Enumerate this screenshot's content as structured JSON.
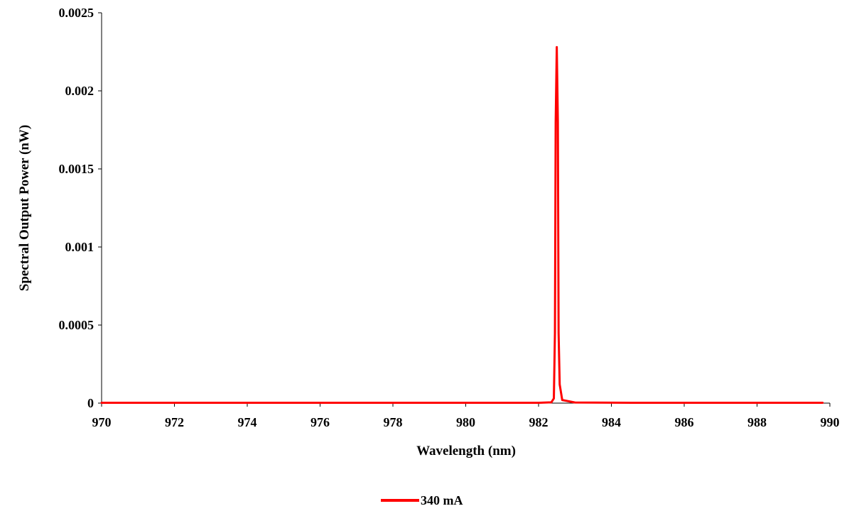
{
  "chart_data": {
    "type": "line",
    "title": "",
    "xlabel": "Wavelength (nm)",
    "ylabel": "Spectral Output Power (nW)",
    "xlim": [
      970,
      990
    ],
    "ylim": [
      0,
      0.0025
    ],
    "x_ticks": [
      "970",
      "972",
      "974",
      "976",
      "978",
      "980",
      "982",
      "984",
      "986",
      "988",
      "990"
    ],
    "y_ticks": [
      "0",
      "0.0005",
      "0.001",
      "0.0015",
      "0.002",
      "0.0025"
    ],
    "grid": false,
    "legend_position": "bottom",
    "series": [
      {
        "name": "340 mA",
        "color": "#ff0000",
        "x": [
          970,
          975,
          980,
          982.0,
          982.35,
          982.42,
          982.45,
          982.47,
          982.5,
          982.53,
          982.55,
          982.58,
          982.65,
          983.0,
          985,
          989.8
        ],
        "y": [
          2e-06,
          2e-06,
          2e-06,
          2e-06,
          5e-06,
          3e-05,
          0.00045,
          0.0018,
          0.00228,
          0.0018,
          0.00045,
          0.00012,
          2e-05,
          4e-06,
          2e-06,
          2e-06
        ]
      }
    ]
  }
}
